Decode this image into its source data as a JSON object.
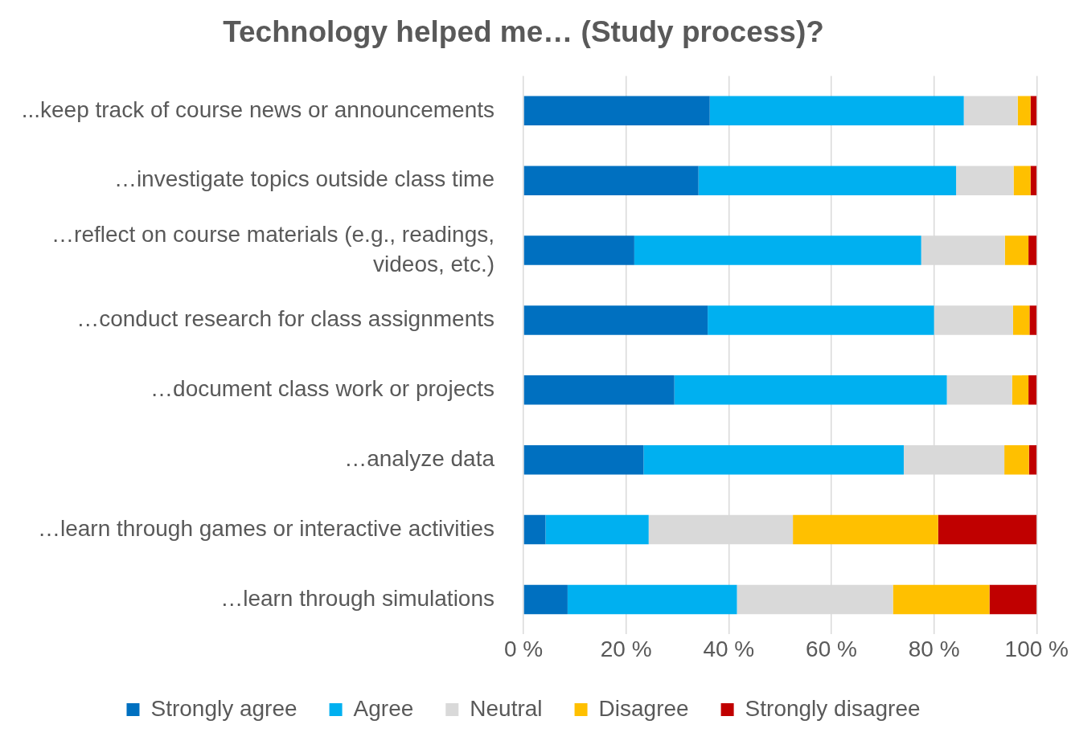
{
  "chart_data": {
    "type": "bar",
    "title": "Technology helped me… (Study process)?",
    "orientation": "horizontal",
    "stacked": true,
    "grid": "x",
    "legend": "bottom",
    "categories": [
      "...keep track of course news or announcements",
      "…investigate topics outside class time",
      "…reflect on course materials (e.g., readings, videos, etc.)",
      "…conduct research for class assignments",
      "…document class work or projects",
      "…analyze data",
      "…learn through games or interactive activities",
      "…learn through simulations"
    ],
    "xlim": [
      0,
      100
    ],
    "xticks": [
      {
        "value": 0,
        "label": "0 %"
      },
      {
        "value": 20,
        "label": "20 %"
      },
      {
        "value": 40,
        "label": "40 %"
      },
      {
        "value": 60,
        "label": "60 %"
      },
      {
        "value": 80,
        "label": "80 %"
      },
      {
        "value": 100,
        "label": "100 %"
      }
    ],
    "series": [
      {
        "name": "Strongly agree",
        "color": "#0070c0",
        "values": [
          36.3,
          34.1,
          21.6,
          35.9,
          29.4,
          23.4,
          4.3,
          8.6
        ]
      },
      {
        "name": "Agree",
        "color": "#00b0f0",
        "values": [
          49.5,
          50.2,
          55.9,
          44.1,
          53.1,
          50.7,
          20.1,
          33.0
        ]
      },
      {
        "name": "Neutral",
        "color": "#d9d9d9",
        "values": [
          10.5,
          11.2,
          16.3,
          15.4,
          12.7,
          19.6,
          28.1,
          30.4
        ]
      },
      {
        "name": "Disagree",
        "color": "#ffc000",
        "values": [
          2.5,
          3.3,
          4.6,
          3.2,
          3.2,
          4.8,
          28.3,
          18.8
        ]
      },
      {
        "name": "Strongly disagree",
        "color": "#c00000",
        "values": [
          1.2,
          1.2,
          1.6,
          1.4,
          1.6,
          1.5,
          19.2,
          9.2
        ]
      }
    ]
  }
}
